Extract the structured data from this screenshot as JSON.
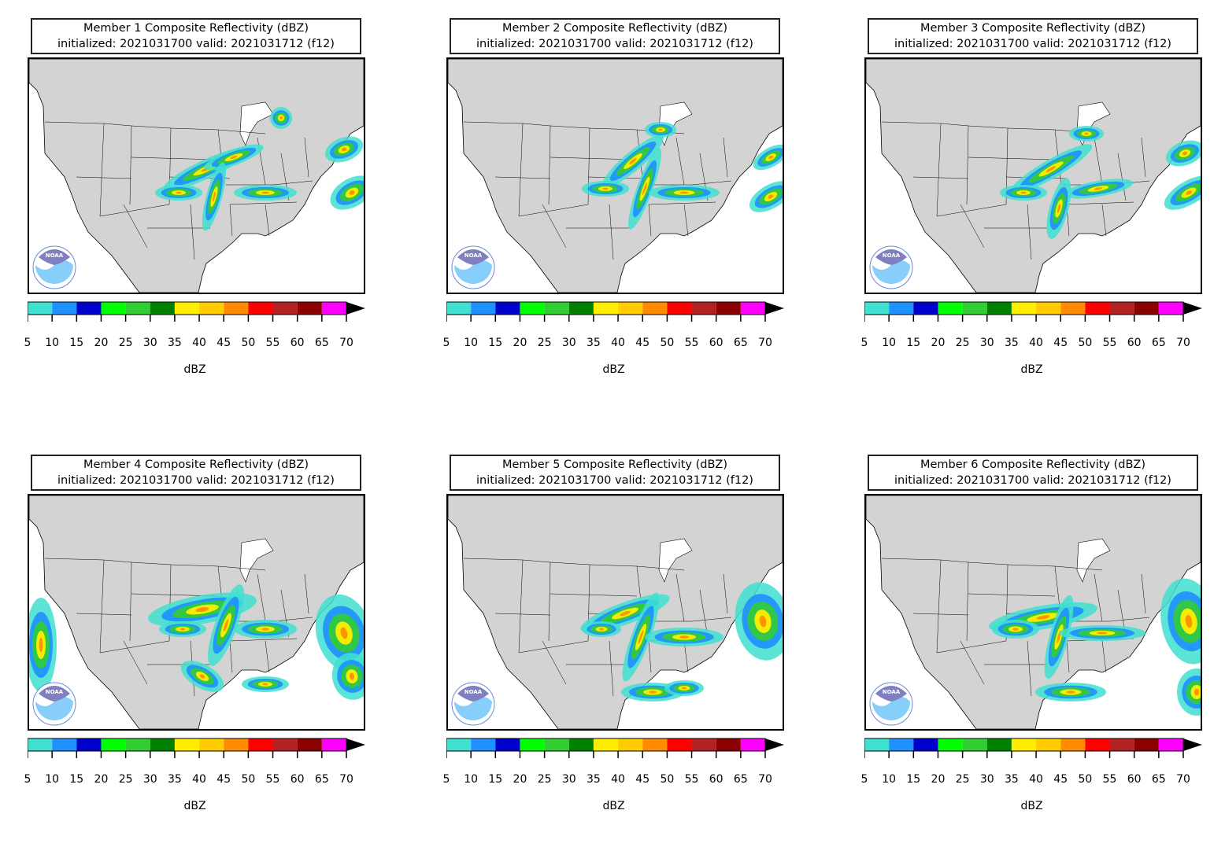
{
  "panels": [
    {
      "title_line1": "Member 1 Composite Reflectivity (dBZ)",
      "title_line2": "initialized: 2021031700 valid: 2021031712 (f12)"
    },
    {
      "title_line1": "Member 2 Composite Reflectivity (dBZ)",
      "title_line2": "initialized: 2021031700 valid: 2021031712 (f12)"
    },
    {
      "title_line1": "Member 3 Composite Reflectivity (dBZ)",
      "title_line2": "initialized: 2021031700 valid: 2021031712 (f12)"
    },
    {
      "title_line1": "Member 4 Composite Reflectivity (dBZ)",
      "title_line2": "initialized: 2021031700 valid: 2021031712 (f12)"
    },
    {
      "title_line1": "Member 5 Composite Reflectivity (dBZ)",
      "title_line2": "initialized: 2021031700 valid: 2021031712 (f12)"
    },
    {
      "title_line1": "Member 6 Composite Reflectivity (dBZ)",
      "title_line2": "initialized: 2021031700 valid: 2021031712 (f12)"
    }
  ],
  "colorbar": {
    "unit_label": "dBZ",
    "ticks": [
      "5",
      "10",
      "15",
      "20",
      "25",
      "30",
      "35",
      "40",
      "45",
      "50",
      "55",
      "60",
      "65",
      "70"
    ],
    "colors": [
      "#40e0d0",
      "#1e90ff",
      "#0000cd",
      "#00ff00",
      "#32cd32",
      "#008000",
      "#ffee00",
      "#ffcc00",
      "#ff8c00",
      "#ff0000",
      "#b22222",
      "#8b0000",
      "#ff00ff"
    ],
    "extend_color": "#000000"
  },
  "map": {
    "land_color": "#d3d3d3",
    "water_color": "#ffffff",
    "border_color": "#000000",
    "logo_name": "noaa-logo",
    "logo_text": "NOAA"
  }
}
